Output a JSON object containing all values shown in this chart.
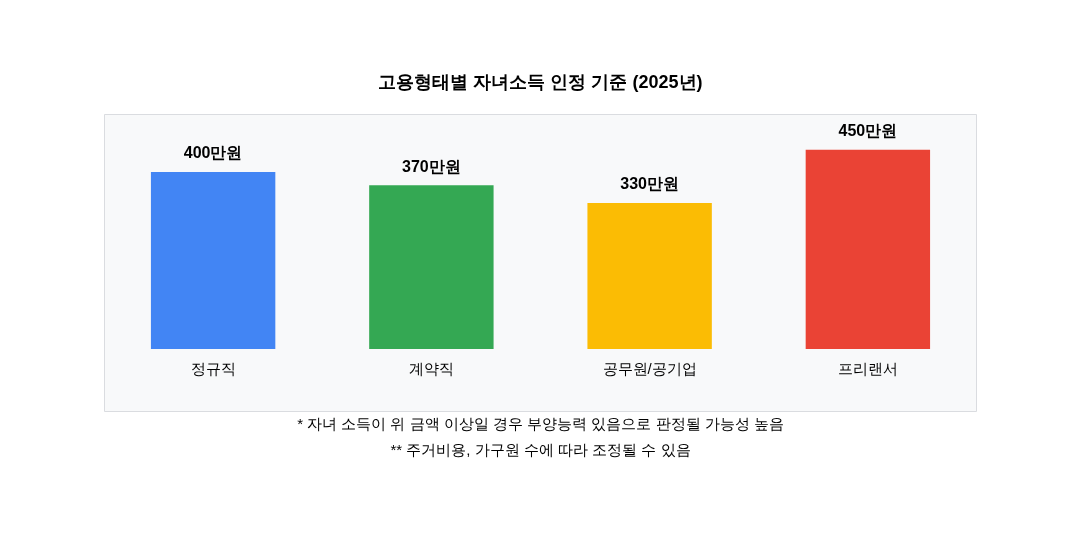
{
  "chart_data": {
    "type": "bar",
    "title": "고용형태별 자녀소득 인정 기준 (2025년)",
    "categories": [
      "정규직",
      "계약직",
      "공무원/공기업",
      "프리랜서"
    ],
    "values": [
      400,
      370,
      330,
      450
    ],
    "colors": [
      "#4285f4",
      "#34a853",
      "#fbbc04",
      "#ea4335"
    ],
    "value_labels": [
      "400만원",
      "370만원",
      "330만원",
      "450만원"
    ],
    "grid": false,
    "legend": false,
    "annotations": [
      "* 자녀 소득이 위 금액 이상일 경우 부양능력 있음으로 판정될 가능성 높음",
      "** 주거비용, 가구원 수에 따라 조정될 수 있음"
    ]
  }
}
